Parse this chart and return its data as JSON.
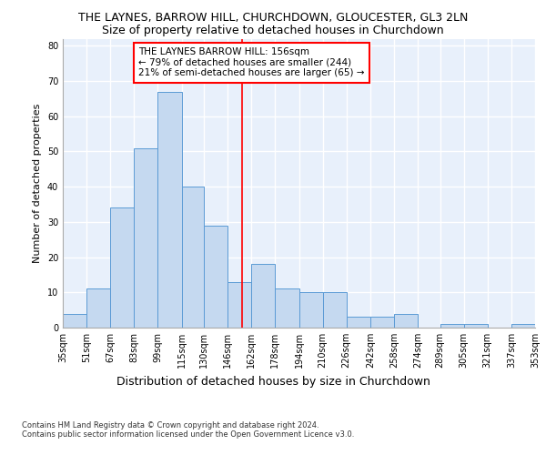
{
  "title": "THE LAYNES, BARROW HILL, CHURCHDOWN, GLOUCESTER, GL3 2LN",
  "subtitle": "Size of property relative to detached houses in Churchdown",
  "xlabel": "Distribution of detached houses by size in Churchdown",
  "ylabel": "Number of detached properties",
  "bar_values": [
    4,
    11,
    34,
    51,
    67,
    40,
    29,
    13,
    18,
    11,
    10,
    10,
    3,
    3,
    4,
    0,
    1,
    1,
    0,
    1
  ],
  "bin_labels": [
    "35sqm",
    "51sqm",
    "67sqm",
    "83sqm",
    "99sqm",
    "115sqm",
    "130sqm",
    "146sqm",
    "162sqm",
    "178sqm",
    "194sqm",
    "210sqm",
    "226sqm",
    "242sqm",
    "258sqm",
    "274sqm",
    "289sqm",
    "305sqm",
    "321sqm",
    "337sqm",
    "353sqm"
  ],
  "bin_edges": [
    35,
    51,
    67,
    83,
    99,
    115,
    130,
    146,
    162,
    178,
    194,
    210,
    226,
    242,
    258,
    274,
    289,
    305,
    321,
    337,
    353
  ],
  "bar_color": "#c5d9f0",
  "bar_edge_color": "#5b9bd5",
  "vline_x": 156,
  "vline_color": "red",
  "annotation_text": "THE LAYNES BARROW HILL: 156sqm\n← 79% of detached houses are smaller (244)\n21% of semi-detached houses are larger (65) →",
  "annotation_box_color": "white",
  "annotation_box_edge_color": "red",
  "ylim": [
    0,
    82
  ],
  "yticks": [
    0,
    10,
    20,
    30,
    40,
    50,
    60,
    70,
    80
  ],
  "background_color": "#e8f0fb",
  "grid_color": "white",
  "footer_text": "Contains HM Land Registry data © Crown copyright and database right 2024.\nContains public sector information licensed under the Open Government Licence v3.0.",
  "title_fontsize": 9,
  "subtitle_fontsize": 9,
  "xlabel_fontsize": 9,
  "ylabel_fontsize": 8,
  "annotation_fontsize": 7.5,
  "tick_fontsize": 7,
  "footer_fontsize": 6
}
